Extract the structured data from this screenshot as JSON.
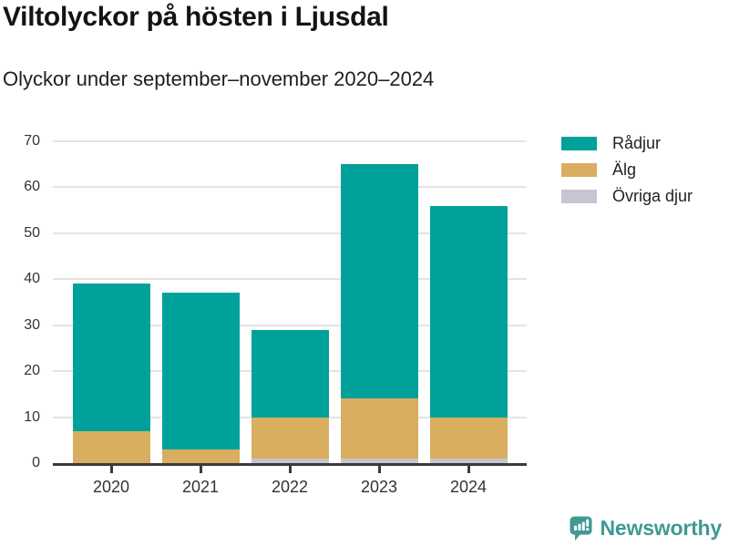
{
  "header": {
    "title": "Viltolyckor på hösten i Ljusdal",
    "subtitle": "Olyckor under september–november 2020–2024"
  },
  "chart_data": {
    "type": "bar",
    "stacked": true,
    "title": "Viltolyckor på hösten i Ljusdal",
    "subtitle": "Olyckor under september–november 2020–2024",
    "categories": [
      "2020",
      "2021",
      "2022",
      "2023",
      "2024"
    ],
    "series": [
      {
        "name": "Rådjur",
        "color": "#00a19a",
        "values": [
          32,
          34,
          19,
          51,
          46
        ]
      },
      {
        "name": "Älg",
        "color": "#d9ae60",
        "values": [
          7,
          3,
          9,
          13,
          9
        ]
      },
      {
        "name": "Övriga djur",
        "color": "#c6c5d1",
        "values": [
          0,
          0,
          1,
          1,
          1
        ]
      }
    ],
    "stack_order_bottom_to_top": [
      "Övriga djur",
      "Älg",
      "Rådjur"
    ],
    "totals": [
      39,
      37,
      29,
      65,
      56
    ],
    "xlabel": "",
    "ylabel": "",
    "ylim": [
      0,
      70
    ],
    "yticks": [
      0,
      10,
      20,
      30,
      40,
      50,
      60,
      70
    ],
    "grid": true,
    "legend_position": "top-right"
  },
  "footer": {
    "brand": "Newsworthy",
    "brand_color": "#3f9a93",
    "logo_icon": "newsworthy-speech-bubble-bar-chart-icon"
  }
}
